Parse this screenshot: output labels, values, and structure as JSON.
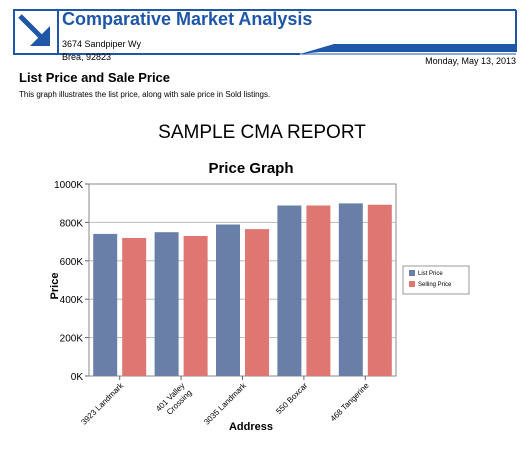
{
  "header": {
    "title": "Comparative Market Analysis",
    "address_line1": "3674 Sandpiper Wy",
    "address_line2": "Brea, 92823",
    "date": "Monday, May 13, 2013",
    "logo_icon": "diagonal-arrow-icon",
    "accent_color": "#1f56a8"
  },
  "section": {
    "title": "List Price and Sale Price",
    "description": "This graph illustrates the list price, along with sale price in Sold listings."
  },
  "chart_data": {
    "type": "bar",
    "report_title": "SAMPLE CMA REPORT",
    "title": "Price Graph",
    "xlabel": "Address",
    "ylabel": "Price",
    "categories": [
      "3923 Landmark",
      "401 Valley Crossing",
      "3035 Landmark",
      "550 Boxcar",
      "468 Tangerine"
    ],
    "category_lines": [
      [
        "3923 Landmark"
      ],
      [
        "401 Valley",
        "Crossing"
      ],
      [
        "3035 Landmark"
      ],
      [
        "550 Boxcar"
      ],
      [
        "468 Tangerine"
      ]
    ],
    "series": [
      {
        "name": "List Price",
        "color": "#6a7fa8",
        "values": [
          740000,
          749000,
          789000,
          888000,
          899000
        ]
      },
      {
        "name": "Selling Price",
        "color": "#de7672",
        "values": [
          719000,
          729000,
          765000,
          888000,
          892000
        ]
      }
    ],
    "ylim": [
      0,
      1000000
    ],
    "yticks": [
      0,
      200000,
      400000,
      600000,
      800000,
      1000000
    ],
    "ytick_labels": [
      "0K",
      "200K",
      "400K",
      "600K",
      "800K",
      "1000K"
    ],
    "grid": true,
    "legend_position": "right"
  }
}
